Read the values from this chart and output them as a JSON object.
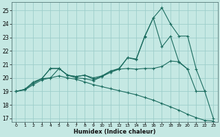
{
  "xlabel": "Humidex (Indice chaleur)",
  "bg_color": "#c5e8e3",
  "grid_color": "#9dceca",
  "line_color": "#1a6b5e",
  "xlim": [
    -0.5,
    23.5
  ],
  "ylim": [
    16.75,
    25.6
  ],
  "yticks": [
    17,
    18,
    19,
    20,
    21,
    22,
    23,
    24,
    25
  ],
  "xticks": [
    0,
    1,
    2,
    3,
    4,
    5,
    6,
    7,
    8,
    9,
    10,
    11,
    12,
    13,
    14,
    15,
    16,
    17,
    18,
    19,
    20,
    21,
    22,
    23
  ],
  "lines": [
    {
      "x": [
        0,
        1,
        2,
        3,
        4,
        5,
        6,
        7,
        8,
        9,
        10,
        11,
        12,
        13,
        14,
        15,
        16,
        17,
        18,
        19,
        20,
        21,
        22
      ],
      "y": [
        19.0,
        19.15,
        19.7,
        19.95,
        20.7,
        20.7,
        20.2,
        20.1,
        20.2,
        20.0,
        20.15,
        20.5,
        20.65,
        20.7,
        20.65,
        20.7,
        20.7,
        20.85,
        21.25,
        21.2,
        20.65,
        19.0,
        19.0
      ]
    },
    {
      "x": [
        0,
        1,
        2,
        3,
        4,
        5,
        6,
        7,
        8,
        9,
        10,
        11,
        12,
        13,
        14,
        15,
        16,
        17,
        18,
        19,
        20,
        21,
        22,
        23
      ],
      "y": [
        19.0,
        19.15,
        19.6,
        19.95,
        20.0,
        20.7,
        20.2,
        20.0,
        19.95,
        19.8,
        20.1,
        20.4,
        20.65,
        21.5,
        21.4,
        23.1,
        24.45,
        25.2,
        24.0,
        23.1,
        23.1,
        20.65,
        19.0,
        17.0
      ]
    },
    {
      "x": [
        2,
        3,
        4,
        5,
        6,
        7,
        8,
        9,
        10,
        11,
        12,
        13,
        14,
        15,
        16,
        17,
        18,
        19,
        20
      ],
      "y": [
        19.6,
        19.95,
        20.7,
        20.7,
        20.2,
        20.1,
        20.2,
        19.9,
        20.1,
        20.5,
        20.7,
        21.5,
        21.35,
        23.05,
        24.45,
        22.3,
        23.1,
        21.15,
        20.65
      ]
    },
    {
      "x": [
        0,
        1,
        2,
        3,
        4,
        5,
        6,
        7,
        8,
        9,
        10,
        11,
        12,
        13,
        14,
        15,
        16,
        17,
        18,
        19,
        20,
        21,
        22,
        23
      ],
      "y": [
        19.0,
        19.1,
        19.5,
        19.85,
        20.0,
        20.15,
        20.0,
        19.9,
        19.7,
        19.5,
        19.35,
        19.2,
        19.05,
        18.9,
        18.75,
        18.55,
        18.35,
        18.1,
        17.85,
        17.6,
        17.3,
        17.05,
        16.85,
        16.8
      ]
    }
  ]
}
